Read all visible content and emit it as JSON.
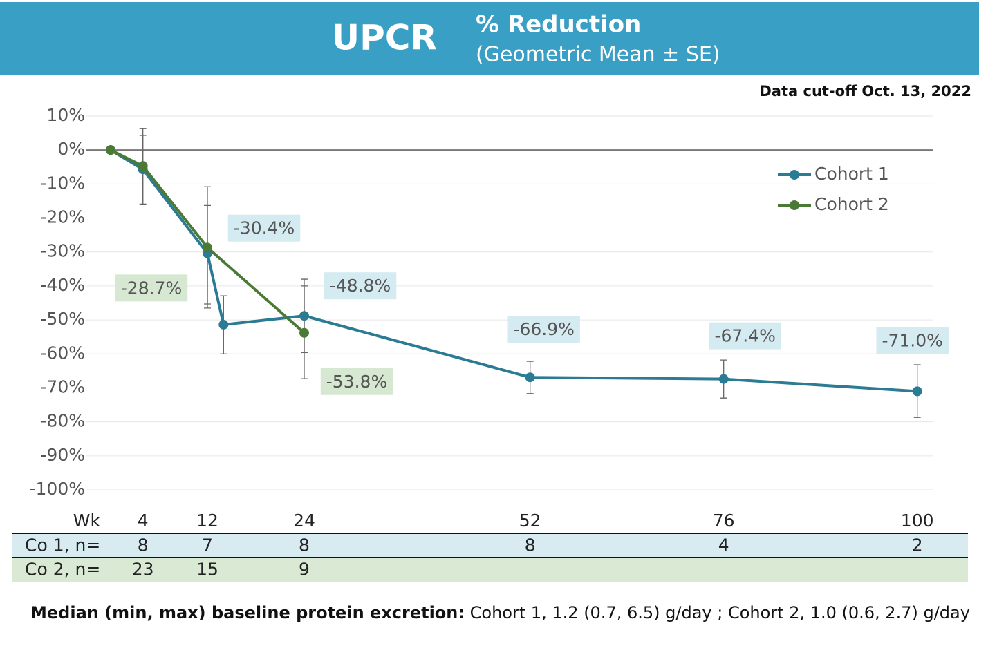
{
  "chart_data": {
    "type": "line",
    "title": "UPCR",
    "subtitle": "% Reduction",
    "subtitle_detail": "(Geometric Mean ± SE)",
    "note": "Data cut-off Oct. 13, 2022",
    "xlim": [
      -3,
      102
    ],
    "ylim": [
      -100,
      10
    ],
    "xticks": [
      4,
      12,
      24,
      52,
      76,
      100
    ],
    "x_label": "Wk",
    "yticks": [
      {
        "value": 10,
        "label": "10%"
      },
      {
        "value": 0,
        "label": "0%"
      },
      {
        "value": -10,
        "label": "-10%"
      },
      {
        "value": -20,
        "label": "-20%"
      },
      {
        "value": -30,
        "label": "-30%"
      },
      {
        "value": -40,
        "label": "-40%"
      },
      {
        "value": -50,
        "label": "-50%"
      },
      {
        "value": -60,
        "label": "-60%"
      },
      {
        "value": -70,
        "label": "-70%"
      },
      {
        "value": -80,
        "label": "-80%"
      },
      {
        "value": -90,
        "label": "-90%"
      },
      {
        "value": -100,
        "label": "-100%"
      }
    ],
    "grid": true,
    "legend": "upper right",
    "series": [
      {
        "name": "Cohort 1",
        "color": "#2a7b93",
        "label_color": "#d5ebf2",
        "x": [
          0,
          4,
          12,
          14,
          24,
          52,
          76,
          100
        ],
        "values": [
          0,
          -5.7,
          -30.4,
          -51.4,
          -48.8,
          -66.9,
          -67.4,
          -71.0
        ],
        "value_labels": [
          null,
          null,
          "-30.4%",
          null,
          "-48.8%",
          "-66.9%",
          "-67.4%",
          "-71.0%"
        ],
        "error_low": [
          null,
          -16.1,
          -45.3,
          -60.0,
          -59.6,
          -71.7,
          -73.0,
          -78.7
        ],
        "error_high": [
          null,
          4.3,
          -16.3,
          -42.9,
          -40.0,
          -62.2,
          -61.8,
          -63.2
        ]
      },
      {
        "name": "Cohort 2",
        "color": "#4b7a36",
        "label_color": "#d6e8d1",
        "x": [
          0,
          4,
          12,
          24
        ],
        "values": [
          0,
          -4.7,
          -28.7,
          -53.8
        ],
        "value_labels": [
          null,
          null,
          "-28.7%",
          "-53.8%"
        ],
        "error_low": [
          null,
          -15.9,
          -46.5,
          -67.3
        ],
        "error_high": [
          null,
          6.3,
          -10.8,
          -38.0
        ]
      }
    ],
    "n_table": {
      "rows": [
        {
          "label": "Co 1, n=",
          "color": "#d7ebf1",
          "values": [
            8,
            7,
            8,
            8,
            4,
            2
          ]
        },
        {
          "label": "Co 2, n=",
          "color": "#d9e9d3",
          "values": [
            23,
            15,
            9,
            null,
            null,
            null
          ]
        }
      ]
    },
    "footnote": {
      "bold": "Median (min, max) baseline protein excretion:",
      "text": "Cohort 1, 1.2 (0.7, 6.5) g/day ; Cohort 2, 1.0 (0.6, 2.7) g/day"
    }
  }
}
